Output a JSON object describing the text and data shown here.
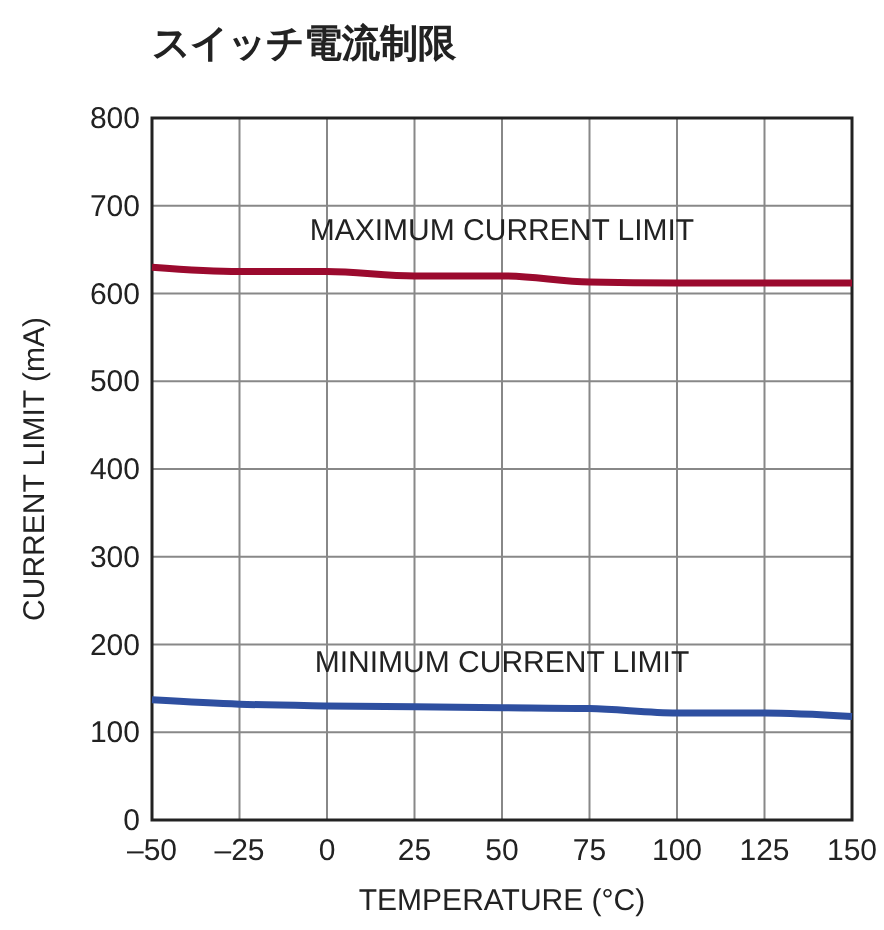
{
  "chart_data": {
    "type": "line",
    "title": "スイッチ電流制限",
    "xlabel": "TEMPERATURE (°C)",
    "ylabel": "CURRENT LIMIT (mA)",
    "x": [
      -50,
      -25,
      0,
      25,
      50,
      75,
      100,
      125,
      150
    ],
    "series": [
      {
        "name": "MAXIMUM CURRENT LIMIT",
        "color": "#9b0a2e",
        "values": [
          630,
          625,
          625,
          620,
          620,
          613,
          612,
          612,
          612
        ]
      },
      {
        "name": "MINIMUM CURRENT LIMIT",
        "color": "#2e4fa0",
        "values": [
          137,
          132,
          130,
          129,
          128,
          127,
          122,
          122,
          118
        ]
      }
    ],
    "xlim": [
      -50,
      150
    ],
    "xticks": [
      {
        "value": -50,
        "label": "–50"
      },
      {
        "value": -25,
        "label": "–25"
      },
      0,
      25,
      50,
      75,
      100,
      125,
      150
    ],
    "ylim": [
      0,
      800
    ],
    "yticks": [
      0,
      100,
      200,
      300,
      400,
      500,
      600,
      700,
      800
    ],
    "grid": true,
    "marker": "none",
    "line_style": "solid"
  }
}
